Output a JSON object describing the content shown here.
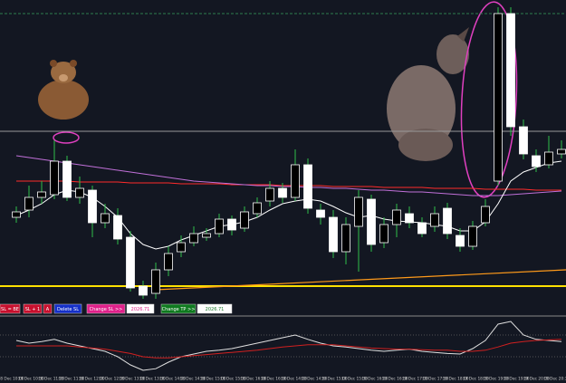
{
  "chart_data": {
    "type": "candlestick",
    "ylim": [
      2015.5,
      2050
    ],
    "candles": [
      [
        2026.0,
        2027.2,
        2025.4,
        2026.6
      ],
      [
        2026.8,
        2029.5,
        2026.0,
        2028.2
      ],
      [
        2028.2,
        2030.0,
        2027.5,
        2028.8
      ],
      [
        2028.5,
        2034.5,
        2028.0,
        2032.2
      ],
      [
        2032.2,
        2032.8,
        2027.8,
        2028.2
      ],
      [
        2028.2,
        2030.5,
        2027.5,
        2029.2
      ],
      [
        2029.0,
        2029.5,
        2023.8,
        2025.4
      ],
      [
        2025.4,
        2027.5,
        2024.8,
        2026.4
      ],
      [
        2026.2,
        2027.0,
        2023.0,
        2023.6
      ],
      [
        2023.8,
        2024.5,
        2017.8,
        2018.2
      ],
      [
        2018.4,
        2019.0,
        2017.0,
        2017.4
      ],
      [
        2017.6,
        2021.0,
        2017.0,
        2020.2
      ],
      [
        2020.2,
        2022.8,
        2019.5,
        2022.0
      ],
      [
        2022.2,
        2024.0,
        2021.6,
        2023.2
      ],
      [
        2023.2,
        2025.0,
        2022.8,
        2024.2
      ],
      [
        2023.8,
        2024.8,
        2023.4,
        2024.2
      ],
      [
        2024.2,
        2026.4,
        2023.8,
        2025.8
      ],
      [
        2025.8,
        2026.2,
        2024.0,
        2024.6
      ],
      [
        2024.8,
        2027.2,
        2024.4,
        2026.6
      ],
      [
        2026.4,
        2028.2,
        2026.0,
        2027.6
      ],
      [
        2027.8,
        2030.0,
        2027.2,
        2029.2
      ],
      [
        2029.2,
        2029.8,
        2027.6,
        2028.2
      ],
      [
        2028.2,
        2033.5,
        2027.8,
        2031.8
      ],
      [
        2031.8,
        2032.5,
        2026.4,
        2027.0
      ],
      [
        2026.8,
        2027.5,
        2025.2,
        2026.0
      ],
      [
        2026.0,
        2026.8,
        2021.5,
        2022.2
      ],
      [
        2022.2,
        2026.0,
        2020.8,
        2025.2
      ],
      [
        2025.0,
        2029.0,
        2020.0,
        2028.2
      ],
      [
        2028.0,
        2028.5,
        2022.2,
        2023.0
      ],
      [
        2023.2,
        2026.0,
        2022.6,
        2025.2
      ],
      [
        2025.2,
        2027.5,
        2023.8,
        2026.8
      ],
      [
        2026.4,
        2027.2,
        2024.8,
        2025.4
      ],
      [
        2025.4,
        2026.0,
        2023.8,
        2024.2
      ],
      [
        2025.0,
        2027.2,
        2024.4,
        2026.4
      ],
      [
        2027.0,
        2027.6,
        2023.6,
        2024.2
      ],
      [
        2024.0,
        2024.8,
        2022.2,
        2022.8
      ],
      [
        2022.8,
        2025.6,
        2022.4,
        2025.0
      ],
      [
        2025.4,
        2028.0,
        2025.0,
        2027.2
      ],
      [
        2030.0,
        2049.2,
        2029.5,
        2048.5
      ],
      [
        2048.5,
        2049.2,
        2035.0,
        2036.0
      ],
      [
        2036.0,
        2036.8,
        2032.4,
        2033.0
      ],
      [
        2032.8,
        2033.5,
        2031.0,
        2031.6
      ],
      [
        2031.8,
        2035.0,
        2031.4,
        2033.2
      ],
      [
        2033.0,
        2034.5,
        2032.5,
        2033.5
      ]
    ],
    "bull_color": "#000000",
    "bear_color": "#ffffff",
    "series": [
      {
        "color": "#ff2b2b",
        "values": [
          2030.0,
          2030.0,
          2030.0,
          2030.0,
          2030.0,
          2029.9,
          2029.9,
          2029.9,
          2029.9,
          2029.8,
          2029.8,
          2029.8,
          2029.8,
          2029.7,
          2029.7,
          2029.7,
          2029.7,
          2029.6,
          2029.6,
          2029.6,
          2029.6,
          2029.5,
          2029.5,
          2029.5,
          2029.5,
          2029.4,
          2029.4,
          2029.4,
          2029.4,
          2029.3,
          2029.3,
          2029.3,
          2029.3,
          2029.2,
          2029.2,
          2029.2,
          2029.2,
          2029.1,
          2029.1,
          2029.1,
          2029.1,
          2029.0,
          2029.0,
          2029.0
        ]
      },
      {
        "color": "#c070d8",
        "values": [
          2032.8,
          2032.6,
          2032.4,
          2032.2,
          2032.0,
          2031.8,
          2031.6,
          2031.4,
          2031.2,
          2031.0,
          2030.8,
          2030.6,
          2030.4,
          2030.2,
          2030.0,
          2029.9,
          2029.8,
          2029.7,
          2029.6,
          2029.5,
          2029.5,
          2029.4,
          2029.4,
          2029.3,
          2029.3,
          2029.2,
          2029.2,
          2029.1,
          2029.0,
          2029.0,
          2028.9,
          2028.8,
          2028.8,
          2028.7,
          2028.6,
          2028.5,
          2028.4,
          2028.4,
          2028.4,
          2028.5,
          2028.6,
          2028.7,
          2028.8,
          2028.9
        ]
      },
      {
        "color": "#ffffff",
        "values": [
          2026.2,
          2026.8,
          2027.5,
          2028.5,
          2029.0,
          2028.8,
          2028.2,
          2027.2,
          2026.0,
          2024.2,
          2023.0,
          2022.5,
          2022.8,
          2023.5,
          2024.0,
          2024.5,
          2025.0,
          2025.2,
          2025.5,
          2026.0,
          2026.8,
          2027.5,
          2027.8,
          2028.0,
          2027.8,
          2027.2,
          2026.5,
          2026.0,
          2026.2,
          2025.8,
          2025.6,
          2025.5,
          2025.4,
          2025.2,
          2025.0,
          2024.5,
          2024.5,
          2025.5,
          2027.5,
          2030.0,
          2031.0,
          2031.5,
          2032.0,
          2032.2
        ]
      }
    ],
    "levels": [
      {
        "value": 2048.5,
        "color": "#2e7d4f"
      },
      {
        "value": 2035.5,
        "color": "#9a9a9a"
      },
      {
        "value": 2018.4,
        "color": "#ffe100"
      }
    ],
    "trend_line": {
      "values": [
        2018.0,
        2020.2
      ],
      "color": "#ff9a1a"
    },
    "indicator": {
      "ylim": [
        0,
        100
      ],
      "levels": [
        70,
        30
      ],
      "series": [
        {
          "color": "#e0e0e0",
          "values": [
            60,
            55,
            58,
            62,
            55,
            50,
            45,
            40,
            30,
            15,
            5,
            8,
            20,
            30,
            35,
            40,
            42,
            45,
            50,
            55,
            60,
            65,
            70,
            62,
            55,
            50,
            48,
            45,
            42,
            40,
            42,
            44,
            40,
            38,
            36,
            35,
            45,
            60,
            90,
            95,
            70,
            62,
            60,
            58
          ]
        },
        {
          "color": "#d02020",
          "values": [
            50,
            50,
            50,
            50,
            50,
            48,
            46,
            44,
            40,
            36,
            30,
            28,
            28,
            30,
            32,
            34,
            36,
            38,
            40,
            42,
            45,
            48,
            50,
            52,
            52,
            52,
            50,
            48,
            46,
            45,
            44,
            44,
            43,
            42,
            42,
            40,
            40,
            42,
            48,
            55,
            58,
            60,
            61,
            62
          ]
        }
      ]
    },
    "x_labels": [
      "18 Dec 10:00",
      "18 Dec 10:30",
      "18 Dec 11:00",
      "18 Dec 11:30",
      "18 Dec 12:00",
      "18 Dec 12:30",
      "18 Dec 13:00",
      "18 Dec 13:30",
      "18 Dec 14:00",
      "18 Dec 14:30",
      "18 Dec 15:00",
      "18 Dec 15:30",
      "18 Dec 16:00",
      "18 Dec 16:30",
      "19 Dec 14:00",
      "19 Dec 14:30",
      "19 Dec 15:00",
      "19 Dec 15:30",
      "19 Dec 16:00",
      "19 Dec 16:30",
      "19 Dec 17:00",
      "19 Dec 17:30",
      "19 Dec 18:00",
      "19 Dec 18:30",
      "19 Dec 19:00",
      "19 Dec 19:30",
      "19 Dec 20:00",
      "19 Dec 20:30"
    ]
  },
  "buttons": [
    {
      "label": "SL = BE",
      "color": "#c8102e"
    },
    {
      "label": "SL + 1",
      "color": "#c8102e"
    },
    {
      "label": "A",
      "color": "#c8102e"
    },
    {
      "label": "Delete SL",
      "color": "#1530c8"
    },
    {
      "label": "Change SL >>",
      "color": "#e0208a"
    },
    {
      "label": 2026.71,
      "color": "#ffffff"
    },
    {
      "label": "Change TP >>",
      "color": "#0f7a1f"
    },
    {
      "label": 2026.71,
      "color": "#ffffff"
    }
  ]
}
